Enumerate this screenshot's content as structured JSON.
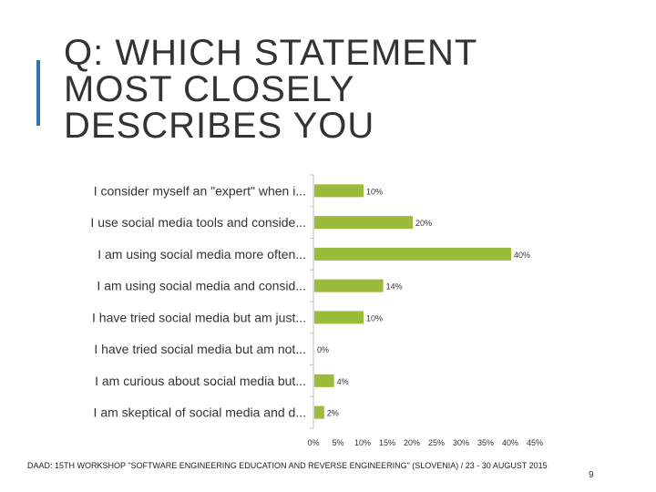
{
  "slide": {
    "title_lines": [
      "Q: WHICH STATEMENT",
      "MOST CLOSELY",
      "DESCRIBES YOU"
    ],
    "footer": "DAAD: 15th Workshop \"Software Engineering Education and Reverse Engineering\" (Slovenia) / 23 - 30 August 2015",
    "page_number": "9",
    "accent_color": "#2e74b5"
  },
  "chart_data": {
    "type": "bar",
    "orientation": "horizontal",
    "categories": [
      "I consider myself an \"expert\" when i...",
      "I use social media tools and conside...",
      "I am using social media more often...",
      "I am using social media and consid...",
      "I have tried social media but am just...",
      "I have tried social media but am not...",
      "I am curious about social media but...",
      "I am skeptical of social media and d..."
    ],
    "values": [
      10,
      20,
      40,
      14,
      10,
      0,
      4,
      2
    ],
    "value_labels": [
      "10%",
      "20%",
      "40%",
      "14%",
      "10%",
      "0%",
      "4%",
      "2%"
    ],
    "x_ticks": [
      "0%",
      "5%",
      "10%",
      "15%",
      "20%",
      "25%",
      "30%",
      "35%",
      "40%",
      "45%"
    ],
    "xlim": [
      0,
      45
    ],
    "bar_color": "#9bbb3b",
    "grid": false,
    "legend": "none"
  }
}
